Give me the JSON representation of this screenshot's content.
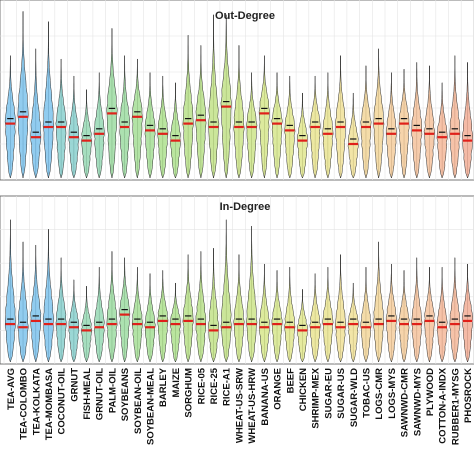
{
  "chart_data": [
    {
      "type": "violin",
      "title": "Out-Degree",
      "xlabel": "",
      "ylabel": "",
      "grid": true,
      "categories": [
        "TEA-AVG",
        "TEA-COLOMBO",
        "TEA-KOLKATA",
        "TEA-MOMBASA",
        "COCONUT-OIL",
        "GRNUT",
        "FISH-MEAL",
        "GRNUT-OIL",
        "PALM-OIL",
        "SOYBEANS",
        "SOYBEAN-OIL",
        "SOYBEAN-MEAL",
        "BARLEY",
        "MAIZE",
        "SORGHUM",
        "RICE-05",
        "RICE-25",
        "RICE-A1",
        "WHEAT-US-SRW",
        "WHEAT-US-HRW",
        "BANANA-US",
        "ORANGE",
        "BEEF",
        "CHICKEN",
        "SHRIMP-MEX",
        "SUGAR-EU",
        "SUGAR-US",
        "SUGAR-WLD",
        "TOBAC-US",
        "LOGS-CMR",
        "LOGS-MYS",
        "SAWNWD-CMR",
        "SAWNWD-MYS",
        "PLYWOOD",
        "COTTON-A-INDX",
        "RUBBER1-MYSG",
        "PHOSROCK"
      ],
      "medians": [
        0.32,
        0.36,
        0.24,
        0.3,
        0.3,
        0.24,
        0.22,
        0.26,
        0.38,
        0.3,
        0.36,
        0.28,
        0.26,
        0.22,
        0.32,
        0.34,
        0.3,
        0.42,
        0.3,
        0.3,
        0.38,
        0.32,
        0.28,
        0.22,
        0.3,
        0.26,
        0.3,
        0.2,
        0.3,
        0.32,
        0.26,
        0.32,
        0.28,
        0.26,
        0.24,
        0.26,
        0.22
      ],
      "maxima": [
        0.72,
        0.98,
        0.76,
        0.92,
        0.7,
        0.6,
        0.52,
        0.62,
        0.88,
        0.72,
        0.7,
        0.62,
        0.6,
        0.56,
        0.84,
        0.78,
        0.96,
        0.96,
        0.78,
        0.62,
        0.72,
        0.62,
        0.6,
        0.5,
        0.6,
        0.62,
        0.72,
        0.5,
        0.66,
        0.76,
        0.62,
        0.64,
        0.68,
        0.66,
        0.56,
        0.72,
        0.68
      ],
      "series_colors": [
        "#7ec3ec",
        "#7ec3ec",
        "#7ec3ec",
        "#7ec3ec",
        "#89d0ce",
        "#89d0ce",
        "#96d8b4",
        "#96d8b4",
        "#9edca2",
        "#9edca2",
        "#a6de96",
        "#a6de96",
        "#aee08e",
        "#aee08e",
        "#b8e08a",
        "#b8e08a",
        "#c2e288",
        "#c2e288",
        "#cce48a",
        "#cce48a",
        "#d6e68c",
        "#d6e68c",
        "#e0e68e",
        "#e0e68e",
        "#eae492",
        "#eae492",
        "#f0e098",
        "#f0e098",
        "#f2d69a",
        "#f2d69a",
        "#f4cc9c",
        "#f4cc9c",
        "#f4c29c",
        "#f4c29c",
        "#f4b89a",
        "#f4b89a",
        "#f2ae96"
      ]
    },
    {
      "type": "violin",
      "title": "In-Degree",
      "xlabel": "",
      "ylabel": "",
      "grid": true,
      "categories": [
        "TEA-AVG",
        "TEA-COLOMBO",
        "TEA-KOLKATA",
        "TEA-MOMBASA",
        "COCONUT-OIL",
        "GRNUT",
        "FISH-MEAL",
        "GRNUT-OIL",
        "PALM-OIL",
        "SOYBEANS",
        "SOYBEAN-OIL",
        "SOYBEAN-MEAL",
        "BARLEY",
        "MAIZE",
        "SORGHUM",
        "RICE-05",
        "RICE-25",
        "RICE-A1",
        "WHEAT-US-SRW",
        "WHEAT-US-HRW",
        "BANANA-US",
        "ORANGE",
        "BEEF",
        "CHICKEN",
        "SHRIMP-MEX",
        "SUGAR-EU",
        "SUGAR-US",
        "SUGAR-WLD",
        "TOBAC-US",
        "LOGS-CMR",
        "LOGS-MYS",
        "SAWNWD-CMR",
        "SAWNWD-MYS",
        "PLYWOOD",
        "COTTON-A-INDX",
        "RUBBER1-MYSG",
        "PHOSROCK"
      ],
      "medians": [
        0.24,
        0.22,
        0.26,
        0.24,
        0.24,
        0.22,
        0.2,
        0.22,
        0.24,
        0.3,
        0.24,
        0.22,
        0.26,
        0.24,
        0.26,
        0.24,
        0.2,
        0.22,
        0.24,
        0.24,
        0.22,
        0.24,
        0.22,
        0.2,
        0.22,
        0.24,
        0.22,
        0.24,
        0.22,
        0.24,
        0.26,
        0.24,
        0.24,
        0.26,
        0.22,
        0.24,
        0.26
      ],
      "maxima": [
        0.9,
        0.76,
        0.74,
        0.84,
        0.66,
        0.52,
        0.48,
        0.6,
        0.7,
        0.66,
        0.6,
        0.56,
        0.58,
        0.5,
        0.68,
        0.7,
        0.72,
        0.9,
        0.68,
        0.86,
        0.62,
        0.58,
        0.6,
        0.46,
        0.56,
        0.6,
        0.68,
        0.5,
        0.6,
        0.76,
        0.62,
        0.58,
        0.66,
        0.6,
        0.6,
        0.66,
        0.62
      ],
      "series_colors": [
        "#7ec3ec",
        "#7ec3ec",
        "#7ec3ec",
        "#7ec3ec",
        "#89d0ce",
        "#89d0ce",
        "#96d8b4",
        "#96d8b4",
        "#9edca2",
        "#9edca2",
        "#a6de96",
        "#a6de96",
        "#aee08e",
        "#aee08e",
        "#b8e08a",
        "#b8e08a",
        "#c2e288",
        "#c2e288",
        "#cce48a",
        "#cce48a",
        "#d6e68c",
        "#d6e68c",
        "#e0e68e",
        "#e0e68e",
        "#eae492",
        "#eae492",
        "#f0e098",
        "#f0e098",
        "#f2d69a",
        "#f2d69a",
        "#f4cc9c",
        "#f4cc9c",
        "#f4c29c",
        "#f4c29c",
        "#f4b89a",
        "#f4b89a",
        "#f2ae96"
      ]
    }
  ]
}
